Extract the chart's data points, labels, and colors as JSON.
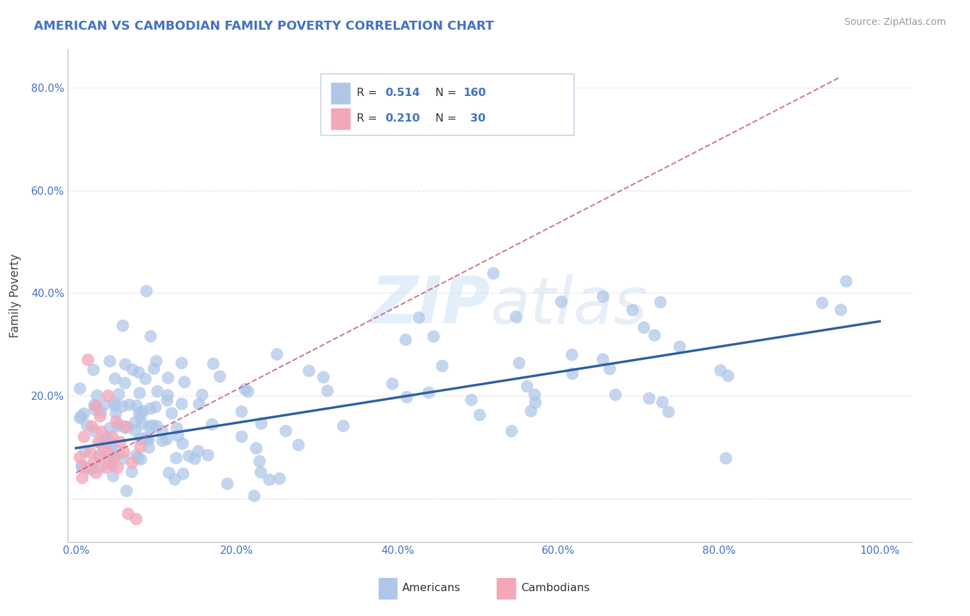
{
  "title": "AMERICAN VS CAMBODIAN FAMILY POVERTY CORRELATION CHART",
  "source": "Source: ZipAtlas.com",
  "ylabel": "Family Poverty",
  "watermark": "ZIPatlas",
  "american_R": 0.514,
  "american_N": 160,
  "cambodian_R": 0.21,
  "cambodian_N": 30,
  "title_color": "#4472c4",
  "american_color": "#aec6e8",
  "american_line_color": "#2e5fa3",
  "cambodian_color": "#f4a7b9",
  "cambodian_line_color": "#c05878",
  "background_color": "#ffffff",
  "grid_color": "#cccccc",
  "diagonal_color": "#ccaaaa"
}
